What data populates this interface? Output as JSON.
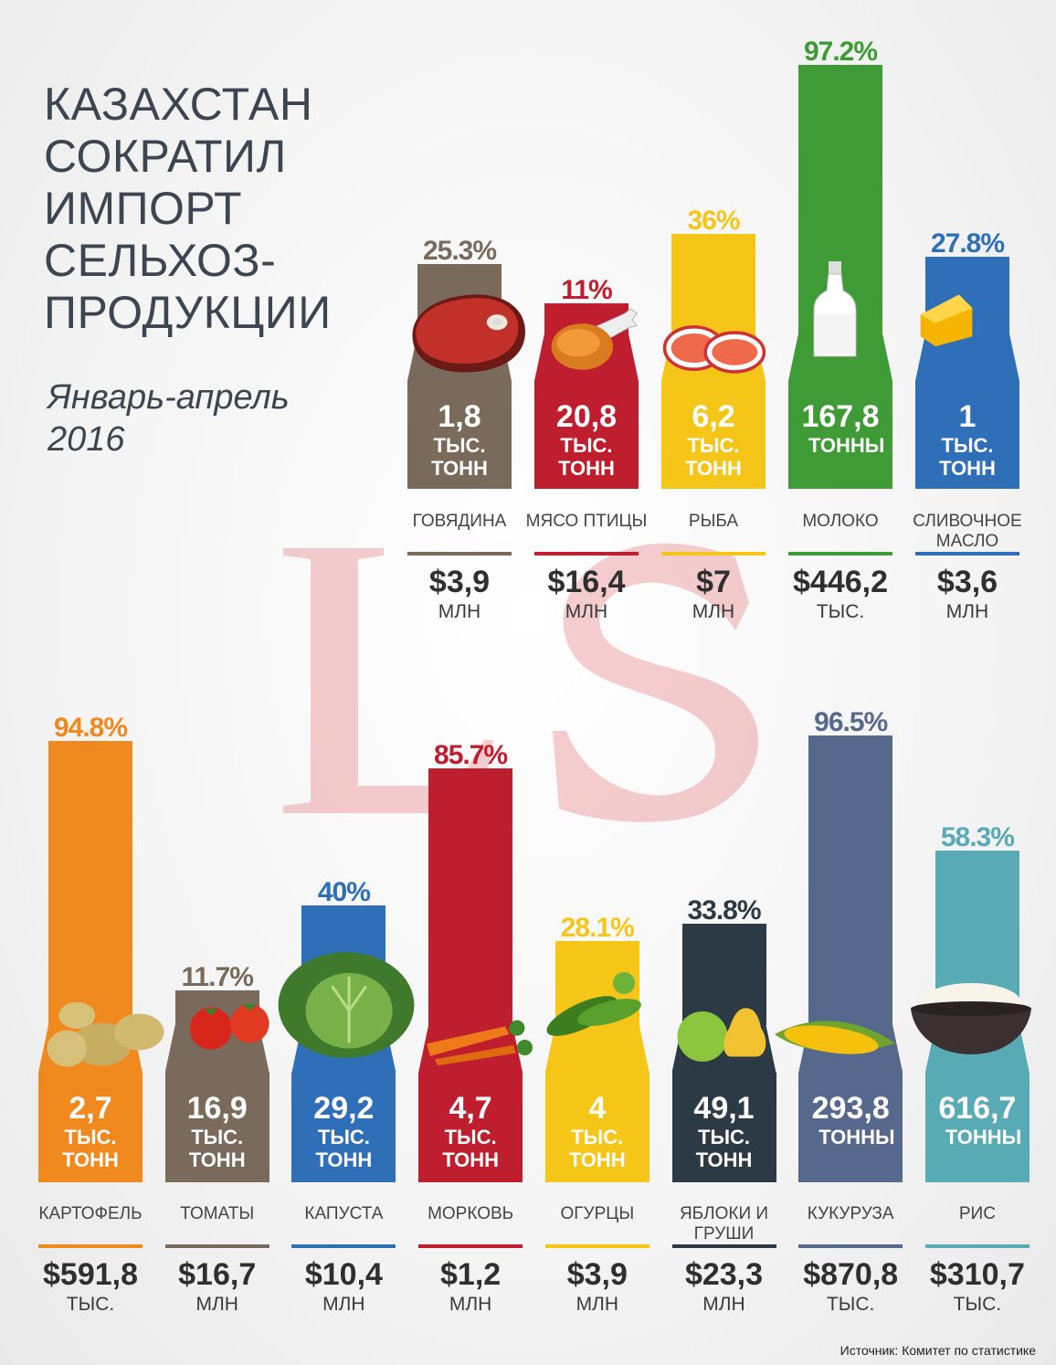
{
  "title_lines": [
    "КАЗАХСТАН",
    "СОКРАТИЛ",
    "ИМПОРТ",
    "СЕЛЬХОЗ-",
    "ПРОДУКЦИИ"
  ],
  "period": "Январь-апрель 2016",
  "source": "Источник: Комитет по статистике",
  "colors": {
    "beef": "#7a6a5c",
    "poultry": "#be1e2d",
    "fish": "#f5c518",
    "milk": "#3e9b35",
    "butter": "#2f6fb8",
    "potato": "#f0891e",
    "tomato": "#7a6a5c",
    "cabbage": "#2f6fb8",
    "carrot": "#be1e2d",
    "cucumber": "#f5c518",
    "apples": "#2c3a45",
    "corn": "#56698c",
    "rice": "#58aab5"
  },
  "chart_data": [
    {
      "type": "bar",
      "title": "",
      "subtitle": "",
      "xlabel": "",
      "ylabel": "",
      "legend": "none",
      "grid": false,
      "ylim": [
        0,
        100
      ],
      "categories": [
        "ГОВЯДИНА",
        "МЯСО ПТИЦЫ",
        "РЫБА",
        "МОЛОКО",
        "СЛИВОЧНОЕ МАСЛО"
      ],
      "series": [
        {
          "values": [
            25.3,
            11,
            36,
            97.2,
            27.8
          ],
          "labels": [
            "25.3%",
            "11%",
            "36%",
            "97.2%",
            "27.8%"
          ]
        }
      ],
      "volumes": [
        {
          "value": "1,8",
          "unit": "ТЫС. ТОНН"
        },
        {
          "value": "20,8",
          "unit": "ТЫС. ТОНН"
        },
        {
          "value": "6,2",
          "unit": "ТЫС. ТОНН"
        },
        {
          "value": "167,8",
          "unit": "ТОННЫ"
        },
        {
          "value": "1",
          "unit": "ТЫС. ТОНН"
        }
      ],
      "costs": [
        {
          "value": "$3,9",
          "suffix": "МЛН"
        },
        {
          "value": "$16,4",
          "suffix": "МЛН"
        },
        {
          "value": "$7",
          "suffix": "МЛН"
        },
        {
          "value": "$446,2",
          "suffix": "ТЫС."
        },
        {
          "value": "$3,6",
          "suffix": "МЛН"
        }
      ]
    },
    {
      "type": "bar",
      "title": "",
      "subtitle": "",
      "xlabel": "",
      "ylabel": "",
      "legend": "none",
      "grid": false,
      "ylim": [
        0,
        100
      ],
      "categories": [
        "КАРТОФЕЛЬ",
        "ТОМАТЫ",
        "КАПУСТА",
        "МОРКОВЬ",
        "ОГУРЦЫ",
        "ЯБЛОКИ И ГРУШИ",
        "КУКУРУЗА",
        "РИС"
      ],
      "series": [
        {
          "values": [
            94.8,
            11.7,
            40,
            85.7,
            28.1,
            33.8,
            96.5,
            58.3
          ],
          "labels": [
            "94.8%",
            "11.7%",
            "40%",
            "85.7%",
            "28.1%",
            "33.8%",
            "96.5%",
            "58.3%"
          ]
        }
      ],
      "volumes": [
        {
          "value": "2,7",
          "unit": "ТЫС. ТОНН"
        },
        {
          "value": "16,9",
          "unit": "ТЫС. ТОНН"
        },
        {
          "value": "29,2",
          "unit": "ТЫС. ТОНН"
        },
        {
          "value": "4,7",
          "unit": "ТЫС. ТОНН"
        },
        {
          "value": "4",
          "unit": "ТЫС. ТОНН"
        },
        {
          "value": "49,1",
          "unit": "ТЫС. ТОНН"
        },
        {
          "value": "293,8",
          "unit": "ТОННЫ"
        },
        {
          "value": "616,7",
          "unit": "ТОННЫ"
        }
      ],
      "costs": [
        {
          "value": "$591,8",
          "suffix": "ТЫС."
        },
        {
          "value": "$16,7",
          "suffix": "МЛН"
        },
        {
          "value": "$10,4",
          "suffix": "МЛН"
        },
        {
          "value": "$1,2",
          "suffix": "МЛН"
        },
        {
          "value": "$3,9",
          "suffix": "МЛН"
        },
        {
          "value": "$23,3",
          "suffix": "МЛН"
        },
        {
          "value": "$870,8",
          "suffix": "ТЫС."
        },
        {
          "value": "$310,7",
          "suffix": "ТЫС."
        }
      ]
    }
  ],
  "icons": [
    "steak-icon",
    "chicken-leg-icon",
    "fish-steak-icon",
    "milk-bottle-icon",
    "butter-block-icon",
    "potatoes-icon",
    "tomatoes-icon",
    "cabbage-icon",
    "carrots-icon",
    "cucumbers-icon",
    "apple-pear-icon",
    "corn-icon",
    "rice-bowl-icon"
  ],
  "watermark": "LS"
}
